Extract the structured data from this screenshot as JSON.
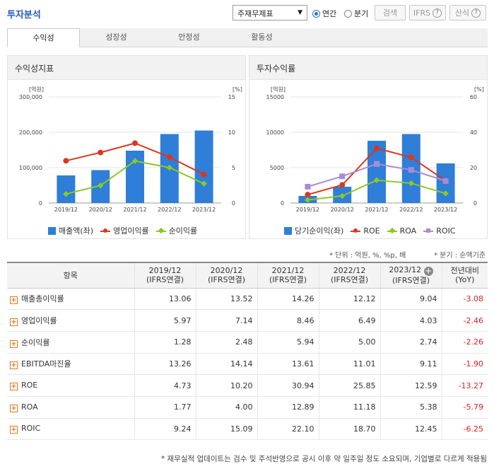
{
  "header": {
    "title": "투자분석",
    "select_value": "주재무제표",
    "radio_annual": "연간",
    "radio_quarter": "분기",
    "search_label": "검색",
    "ifrs_label": "IFRS",
    "formula_label": "산식"
  },
  "tabs": [
    {
      "label": "수익성"
    },
    {
      "label": "성장성"
    },
    {
      "label": "안정성"
    },
    {
      "label": "활동성"
    }
  ],
  "left_panel": {
    "title": "수익성지표",
    "left_unit": "[억원]",
    "right_unit": "[%]",
    "legend": [
      "매출액(좌)",
      "영업이익률",
      "순이익률"
    ]
  },
  "right_panel": {
    "title": "투자수익률",
    "left_unit": "[억원]",
    "right_unit": "[%]",
    "legend": [
      "당기순이익(좌)",
      "ROE",
      "ROA",
      "ROIC"
    ]
  },
  "notes": {
    "unit": "* 단위 : 억원, %, %p, 배",
    "quarter": "* 분기 : 순액기준"
  },
  "table": {
    "header_item": "항목",
    "periods": [
      {
        "year": "2019/12",
        "type": "(IFRS연결)"
      },
      {
        "year": "2020/12",
        "type": "(IFRS연결)"
      },
      {
        "year": "2021/12",
        "type": "(IFRS연결)"
      },
      {
        "year": "2022/12",
        "type": "(IFRS연결)"
      },
      {
        "year": "2023/12",
        "type": "(IFRS연결)"
      }
    ],
    "yoy_title": "전년대비",
    "yoy_sub": "(YoY)",
    "rows": [
      {
        "label": "매출총이익률",
        "values": [
          "13.06",
          "13.52",
          "14.26",
          "12.12",
          "9.04"
        ],
        "yoy": "-3.08"
      },
      {
        "label": "영업이익률",
        "values": [
          "5.97",
          "7.14",
          "8.46",
          "6.49",
          "4.03"
        ],
        "yoy": "-2.46"
      },
      {
        "label": "순이익률",
        "values": [
          "1.28",
          "2.48",
          "5.94",
          "5.00",
          "2.74"
        ],
        "yoy": "-2.26"
      },
      {
        "label": "EBITDA마진율",
        "values": [
          "13.26",
          "14.14",
          "13.61",
          "11.01",
          "9.11"
        ],
        "yoy": "-1.90"
      },
      {
        "label": "ROE",
        "values": [
          "4.73",
          "10.20",
          "30.94",
          "25.85",
          "12.59"
        ],
        "yoy": "-13.27"
      },
      {
        "label": "ROA",
        "values": [
          "1.77",
          "4.00",
          "12.89",
          "11.18",
          "5.38"
        ],
        "yoy": "-5.79"
      },
      {
        "label": "ROIC",
        "values": [
          "9.24",
          "15.09",
          "22.10",
          "18.70",
          "12.45"
        ],
        "yoy": "-6.25"
      }
    ]
  },
  "footer": "* 재무실적 업데이트는 검수 및 주석반영으로 공시 이후 약 일주일 정도 소요되며, 기업별로 다르게 적용됨",
  "colors": {
    "bar": "#2f7ed8",
    "red": "#d9381e",
    "green": "#8ac926",
    "purple": "#a98bd6"
  },
  "chart_data": [
    {
      "type": "bar",
      "title": "수익성지표",
      "categories": [
        "2019/12",
        "2020/12",
        "2021/12",
        "2022/12",
        "2023/12"
      ],
      "left_ticks": [
        "0",
        "100,000",
        "200,000",
        "300,000"
      ],
      "right_ticks": [
        "0",
        "5",
        "10",
        "15"
      ],
      "ylim_left": [
        0,
        300000
      ],
      "ylim_right": [
        0,
        15
      ],
      "series": [
        {
          "name": "매출액(좌)",
          "type": "bar",
          "axis": "left",
          "values": [
            78000,
            93000,
            148000,
            195000,
            205000
          ]
        },
        {
          "name": "영업이익률",
          "type": "line",
          "axis": "right",
          "values": [
            5.97,
            7.14,
            8.46,
            6.49,
            4.03
          ]
        },
        {
          "name": "순이익률",
          "type": "line",
          "axis": "right",
          "values": [
            1.28,
            2.48,
            5.94,
            5.0,
            2.74
          ]
        }
      ]
    },
    {
      "type": "bar",
      "title": "투자수익률",
      "categories": [
        "2019/12",
        "2020/12",
        "2021/12",
        "2022/12",
        "2023/12"
      ],
      "left_ticks": [
        "0",
        "5000",
        "10000",
        "15000"
      ],
      "right_ticks": [
        "0",
        "20",
        "40",
        "60"
      ],
      "ylim_left": [
        0,
        15000
      ],
      "ylim_right": [
        0,
        60
      ],
      "series": [
        {
          "name": "당기순이익(좌)",
          "type": "bar",
          "axis": "left",
          "values": [
            1000,
            2300,
            8800,
            9750,
            5600
          ]
        },
        {
          "name": "ROE",
          "type": "line",
          "axis": "right",
          "values": [
            4.73,
            10.2,
            30.94,
            25.85,
            12.59
          ]
        },
        {
          "name": "ROA",
          "type": "line",
          "axis": "right",
          "values": [
            1.77,
            4.0,
            12.89,
            11.18,
            5.38
          ]
        },
        {
          "name": "ROIC",
          "type": "line",
          "axis": "right",
          "values": [
            9.24,
            15.09,
            22.1,
            18.7,
            12.45
          ]
        }
      ]
    }
  ]
}
